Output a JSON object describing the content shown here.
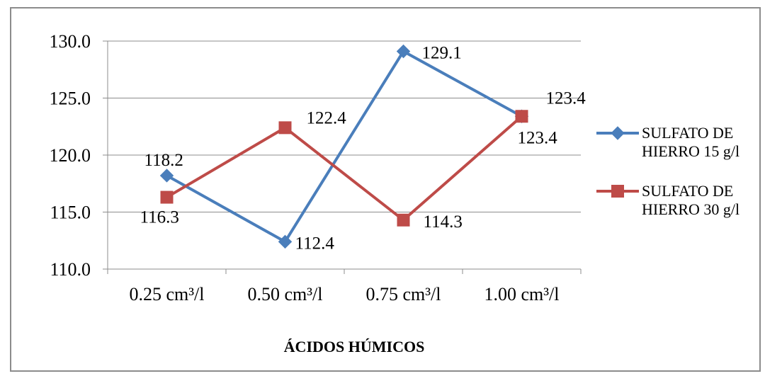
{
  "chart_data": {
    "type": "line",
    "categories": [
      "0.25 cm³/l",
      "0.50 cm³/l",
      "0.75 cm³/l",
      "1.00 cm³/l"
    ],
    "series": [
      {
        "name_lines": [
          "SULFATO DE",
          "HIERRO 15 g/l"
        ],
        "values": [
          118.2,
          112.4,
          129.1,
          123.4
        ],
        "labels": [
          "118.2",
          "112.4",
          "129.1",
          "123.4"
        ],
        "color": "#4a7ebb",
        "marker": "diamond"
      },
      {
        "name_lines": [
          "SULFATO DE",
          "HIERRO 30 g/l"
        ],
        "values": [
          116.3,
          122.4,
          114.3,
          123.4
        ],
        "labels": [
          "116.3",
          "122.4",
          "114.3",
          "123.4"
        ],
        "color": "#be4b48",
        "marker": "square"
      }
    ],
    "yticks": [
      "110.0",
      "115.0",
      "120.0",
      "125.0",
      "130.0"
    ],
    "ylim": [
      110,
      130
    ],
    "xlabel": "ÁCIDOS HÚMICOS",
    "ylabel": "",
    "grid": true,
    "legend_position": "right"
  }
}
